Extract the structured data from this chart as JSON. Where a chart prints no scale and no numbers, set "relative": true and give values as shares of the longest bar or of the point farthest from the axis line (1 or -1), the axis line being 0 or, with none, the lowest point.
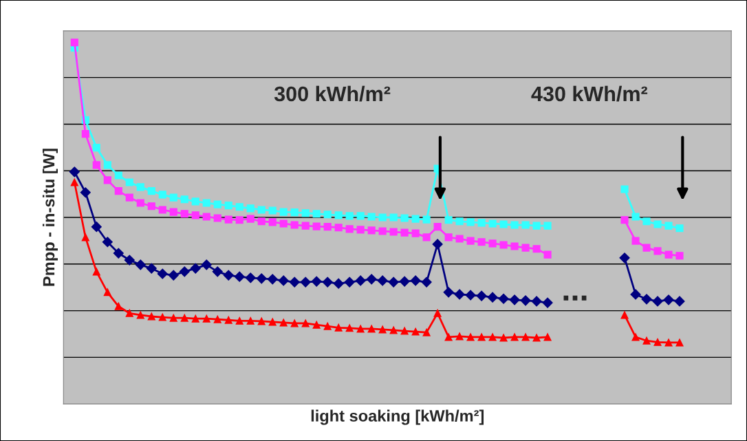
{
  "chart_data": {
    "type": "line",
    "relative": true,
    "xlabel": "light soaking [kWh/m²]",
    "ylabel": "Pmpp - in-situ [W]",
    "categories": [
      null,
      null,
      null,
      null,
      null,
      null,
      null,
      null,
      null,
      null,
      null,
      null,
      null,
      null,
      null,
      null,
      null,
      null,
      null,
      null,
      null,
      null,
      null,
      null,
      null,
      null,
      null,
      null,
      null,
      null,
      null,
      null,
      null,
      null,
      null,
      null,
      null,
      null,
      null,
      null,
      null,
      null,
      null,
      null,
      null,
      null,
      null,
      null,
      null,
      null,
      null,
      null,
      null,
      null,
      null,
      null
    ],
    "series": [
      {
        "color": "#33ffff",
        "marker": "square",
        "values": [
          0.985,
          0.785,
          0.709,
          0.661,
          0.632,
          0.613,
          0.6,
          0.589,
          0.579,
          0.571,
          0.566,
          0.56,
          0.556,
          0.552,
          0.549,
          0.545,
          0.541,
          0.537,
          0.535,
          0.531,
          0.53,
          0.528,
          0.526,
          0.524,
          0.522,
          0.52,
          0.52,
          0.518,
          0.516,
          0.516,
          0.514,
          0.512,
          0.51,
          0.651,
          0.509,
          0.505,
          0.503,
          0.501,
          0.499,
          0.497,
          0.495,
          0.495,
          0.493,
          0.493,
          null,
          null,
          null,
          null,
          null,
          null,
          null,
          null,
          null,
          null,
          null,
          null
        ]
      },
      {
        "color": "#33ffff",
        "marker": "square",
        "values": [
          null,
          null,
          null,
          null,
          null,
          null,
          null,
          null,
          null,
          null,
          null,
          null,
          null,
          null,
          null,
          null,
          null,
          null,
          null,
          null,
          null,
          null,
          null,
          null,
          null,
          null,
          null,
          null,
          null,
          null,
          null,
          null,
          null,
          null,
          null,
          null,
          null,
          null,
          null,
          null,
          null,
          null,
          null,
          null,
          null,
          null,
          null,
          null,
          null,
          null,
          0.594,
          0.518,
          0.505,
          0.497,
          0.493,
          0.486
        ]
      },
      {
        "color": "#ff33ff",
        "marker": "square",
        "values": [
          1.0,
          0.747,
          0.661,
          0.619,
          0.589,
          0.571,
          0.556,
          0.547,
          0.537,
          0.531,
          0.526,
          0.522,
          0.518,
          0.514,
          0.51,
          0.509,
          0.512,
          0.505,
          0.503,
          0.499,
          0.495,
          0.493,
          0.491,
          0.49,
          0.488,
          0.484,
          0.482,
          0.48,
          0.478,
          0.476,
          0.474,
          0.472,
          0.461,
          0.49,
          0.461,
          0.457,
          0.451,
          0.448,
          0.444,
          0.44,
          0.436,
          0.432,
          0.429,
          0.413,
          null,
          null,
          null,
          null,
          null,
          null,
          null,
          null,
          null,
          null,
          null,
          null
        ]
      },
      {
        "color": "#ff33ff",
        "marker": "square",
        "values": [
          null,
          null,
          null,
          null,
          null,
          null,
          null,
          null,
          null,
          null,
          null,
          null,
          null,
          null,
          null,
          null,
          null,
          null,
          null,
          null,
          null,
          null,
          null,
          null,
          null,
          null,
          null,
          null,
          null,
          null,
          null,
          null,
          null,
          null,
          null,
          null,
          null,
          null,
          null,
          null,
          null,
          null,
          null,
          null,
          null,
          null,
          null,
          null,
          null,
          null,
          0.509,
          0.451,
          0.432,
          0.423,
          0.413,
          0.41
        ]
      },
      {
        "color": "#000080",
        "marker": "diamond",
        "values": [
          0.642,
          0.585,
          0.49,
          0.448,
          0.417,
          0.398,
          0.385,
          0.375,
          0.36,
          0.356,
          0.366,
          0.375,
          0.385,
          0.366,
          0.356,
          0.352,
          0.349,
          0.347,
          0.345,
          0.341,
          0.337,
          0.337,
          0.339,
          0.337,
          0.333,
          0.337,
          0.341,
          0.345,
          0.341,
          0.337,
          0.339,
          0.341,
          0.337,
          0.442,
          0.309,
          0.303,
          0.301,
          0.299,
          0.295,
          0.291,
          0.288,
          0.286,
          0.284,
          0.28,
          null,
          null,
          null,
          null,
          null,
          null,
          null,
          null,
          null,
          null,
          null,
          null
        ]
      },
      {
        "color": "#000080",
        "marker": "diamond",
        "values": [
          null,
          null,
          null,
          null,
          null,
          null,
          null,
          null,
          null,
          null,
          null,
          null,
          null,
          null,
          null,
          null,
          null,
          null,
          null,
          null,
          null,
          null,
          null,
          null,
          null,
          null,
          null,
          null,
          null,
          null,
          null,
          null,
          null,
          null,
          null,
          null,
          null,
          null,
          null,
          null,
          null,
          null,
          null,
          null,
          null,
          null,
          null,
          null,
          null,
          null,
          0.404,
          0.303,
          0.29,
          0.284,
          0.288,
          0.284
        ]
      },
      {
        "color": "#ff0000",
        "marker": "triangle",
        "values": [
          0.613,
          0.461,
          0.366,
          0.309,
          0.27,
          0.251,
          0.246,
          0.242,
          0.24,
          0.238,
          0.238,
          0.236,
          0.236,
          0.234,
          0.232,
          0.23,
          0.23,
          0.229,
          0.227,
          0.225,
          0.223,
          0.223,
          0.219,
          0.215,
          0.211,
          0.21,
          0.208,
          0.208,
          0.206,
          0.204,
          0.202,
          0.2,
          0.198,
          0.251,
          0.185,
          0.187,
          0.185,
          0.185,
          0.185,
          0.183,
          0.185,
          0.185,
          0.183,
          0.185,
          null,
          null,
          null,
          null,
          null,
          null,
          null,
          null,
          null,
          null,
          null,
          null
        ]
      },
      {
        "color": "#ff0000",
        "marker": "triangle",
        "values": [
          null,
          null,
          null,
          null,
          null,
          null,
          null,
          null,
          null,
          null,
          null,
          null,
          null,
          null,
          null,
          null,
          null,
          null,
          null,
          null,
          null,
          null,
          null,
          null,
          null,
          null,
          null,
          null,
          null,
          null,
          null,
          null,
          null,
          null,
          null,
          null,
          null,
          null,
          null,
          null,
          null,
          null,
          null,
          null,
          null,
          null,
          null,
          null,
          null,
          null,
          0.246,
          0.185,
          0.175,
          0.171,
          0.17,
          0.17
        ]
      }
    ],
    "annotations": [
      "300 kWh/m²",
      "430 kWh/m²",
      "..."
    ],
    "grid": "y",
    "legend": false,
    "line_style": "solid"
  }
}
